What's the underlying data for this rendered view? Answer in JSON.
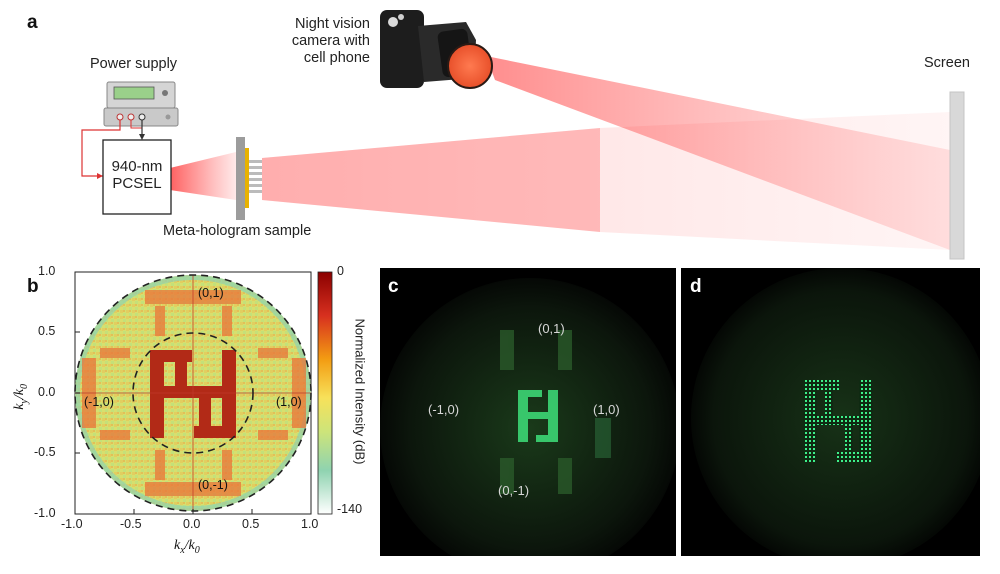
{
  "panels": {
    "a": "a",
    "b": "b",
    "c": "c",
    "d": "d"
  },
  "setup": {
    "camera_label_lines": [
      "Night vision",
      "camera with",
      "cell phone"
    ],
    "power_supply_label": "Power supply",
    "laser_label_lines": [
      "940-nm",
      "PCSEL"
    ],
    "sample_label": "Meta-hologram sample",
    "screen_label": "Screen"
  },
  "panel_b": {
    "x_axis": {
      "label_k": "k",
      "label_sub": "x",
      "label_slash": "/k",
      "label_sub0": "0",
      "ticks": [
        "-1.0",
        "-0.5",
        "0.0",
        "0.5",
        "1.0"
      ]
    },
    "y_axis": {
      "label_k": "k",
      "label_sub": "y",
      "label_slash": "/k",
      "label_sub0": "0",
      "ticks": [
        "1.0",
        "0.5",
        "0.0",
        "-0.5",
        "-1.0"
      ]
    },
    "colorbar": {
      "label": "Normalized Intensity (dB)",
      "max": "0",
      "min": "-140",
      "colors": [
        "#8b0000",
        "#d7301f",
        "#f39c12",
        "#f7e15a",
        "#cde47a",
        "#8fd3b0",
        "#ffffff"
      ]
    },
    "orders": [
      "(0,1)",
      "(-1,0)",
      "(1,0)",
      "(0,-1)"
    ]
  },
  "panel_c": {
    "orders": [
      "(0,1)",
      "(-1,0)",
      "(1,0)",
      "(0,-1)"
    ]
  }
}
